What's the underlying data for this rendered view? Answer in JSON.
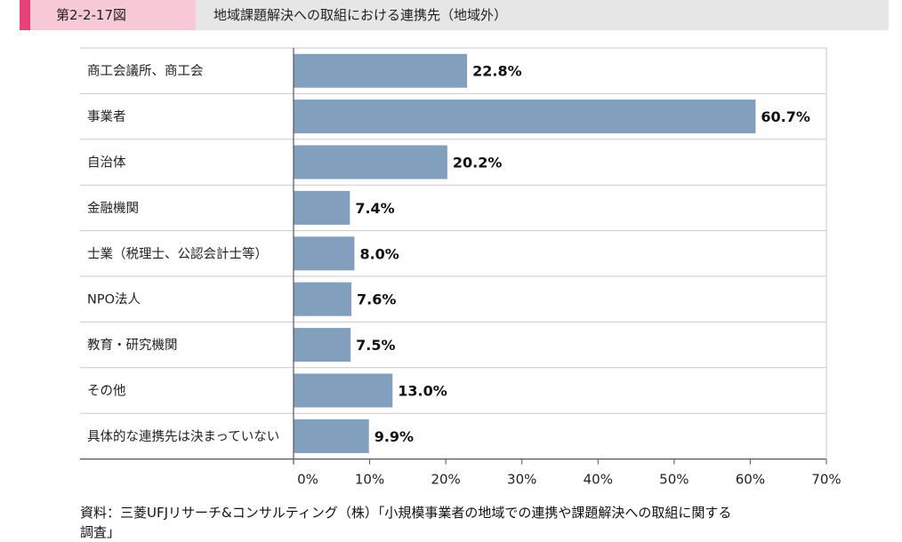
{
  "header": {
    "figure_number": "第2-2-17図",
    "figure_title": "地域課題解決への取組における連携先（地域外）"
  },
  "chart_data": {
    "type": "bar",
    "orientation": "horizontal",
    "categories": [
      "商工会議所、商工会",
      "事業者",
      "自治体",
      "金融機関",
      "士業（税理士、公認会計士等）",
      "NPO法人",
      "教育・研究機関",
      "その他",
      "具体的な連携先は決まっていない"
    ],
    "values": [
      22.8,
      60.7,
      20.2,
      7.4,
      8.0,
      7.6,
      7.5,
      13.0,
      9.9
    ],
    "value_labels": [
      "22.8%",
      "60.7%",
      "20.2%",
      "7.4%",
      "8.0%",
      "7.6%",
      "7.5%",
      "13.0%",
      "9.9%"
    ],
    "xlim": [
      0,
      70
    ],
    "xticks": [
      0,
      10,
      20,
      30,
      40,
      50,
      60,
      70
    ],
    "xtick_labels": [
      "0%",
      "10%",
      "20%",
      "30%",
      "40%",
      "50%",
      "60%",
      "70%"
    ],
    "bar_color": "#829fbd",
    "grid": false
  },
  "source": {
    "line1": "資料：三菱UFJリサーチ&コンサルティング（株）「小規模事業者の地域での連携や課題解決への取組に関する",
    "line2": "調査」"
  }
}
